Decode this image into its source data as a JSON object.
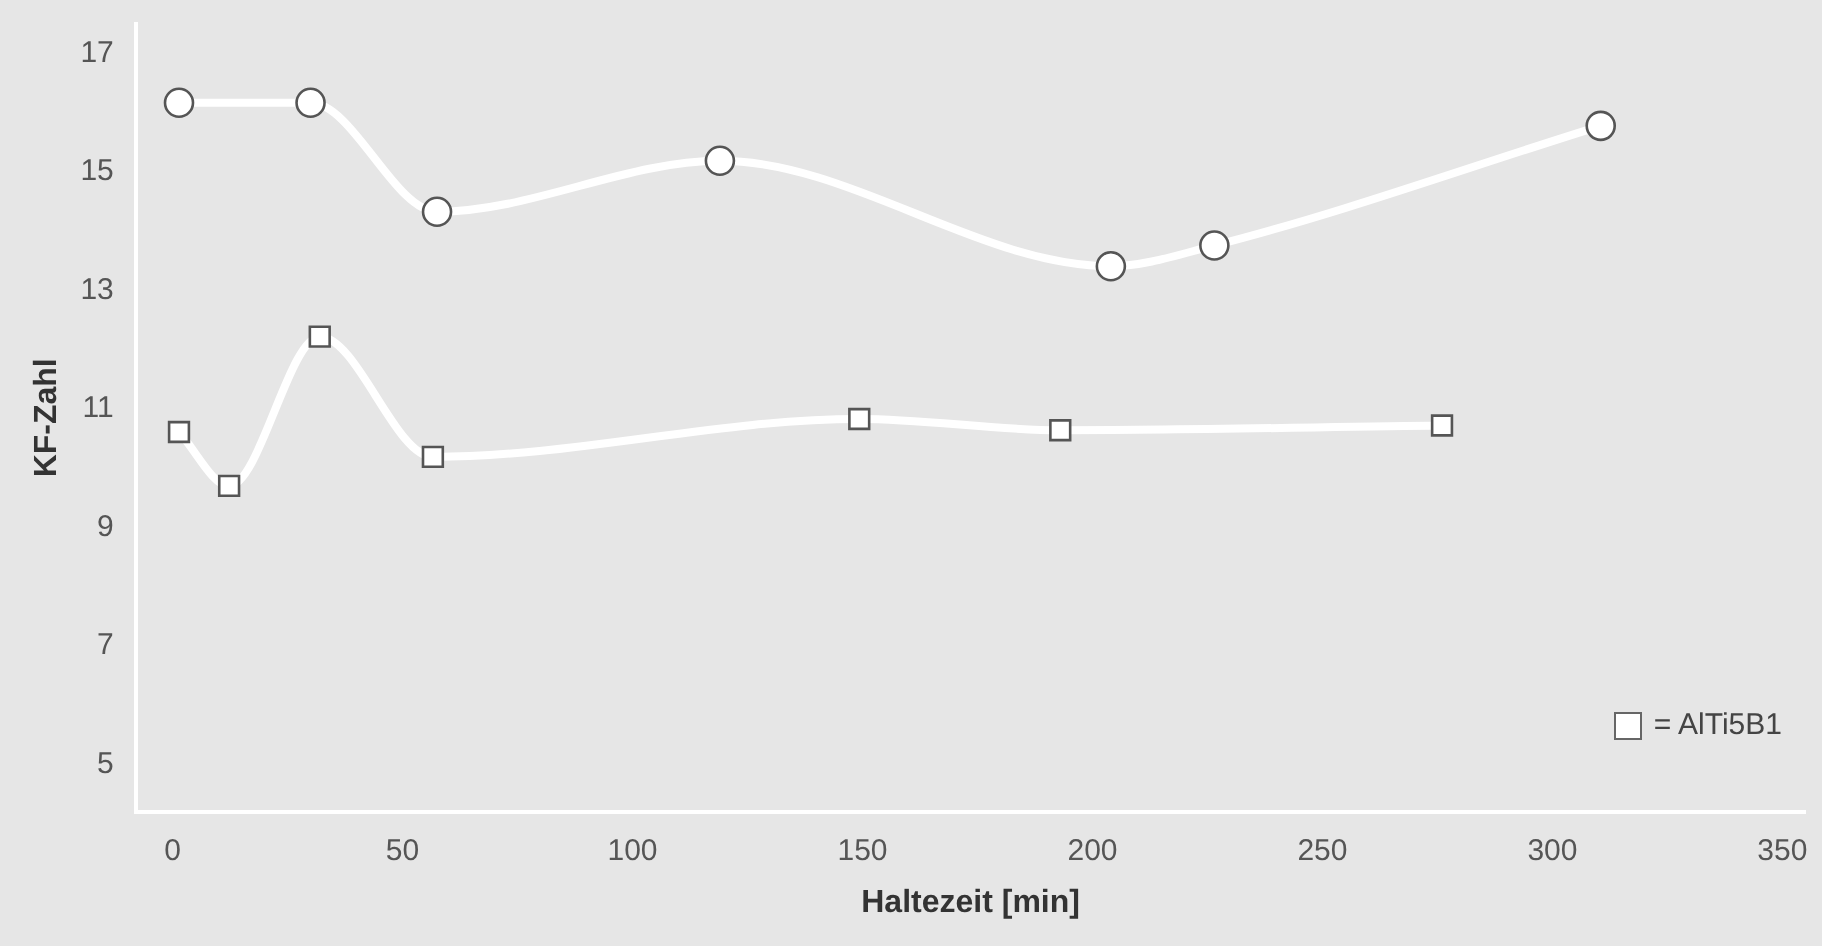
{
  "chart_data": {
    "type": "line",
    "xlabel": "Haltezeit [min]",
    "ylabel": "KF-Zahl",
    "xlim": [
      -8,
      355
    ],
    "xticks": [
      0,
      50,
      100,
      150,
      200,
      250,
      300,
      350
    ],
    "ylim": [
      4.2,
      17.5
    ],
    "yticks": [
      5,
      7,
      9,
      11,
      13,
      15,
      17
    ],
    "grid": false,
    "legend": "bottom right",
    "line_style": "solid",
    "series": [
      {
        "name": "= AlTi5B1",
        "color": "#ffffff",
        "marker": "square",
        "x": [
          1.4,
          12.3,
          32,
          56.6,
          149.3,
          193,
          276
        ],
        "values": [
          10.61,
          9.7,
          12.22,
          10.19,
          10.83,
          10.64,
          10.72
        ]
      },
      {
        "color": "#ffffff",
        "marker": "circle",
        "x": [
          1.4,
          30,
          57.5,
          119,
          204,
          226.5,
          310.5
        ],
        "values": [
          16.17,
          16.17,
          14.33,
          15.19,
          13.41,
          13.76,
          15.78
        ]
      }
    ]
  }
}
